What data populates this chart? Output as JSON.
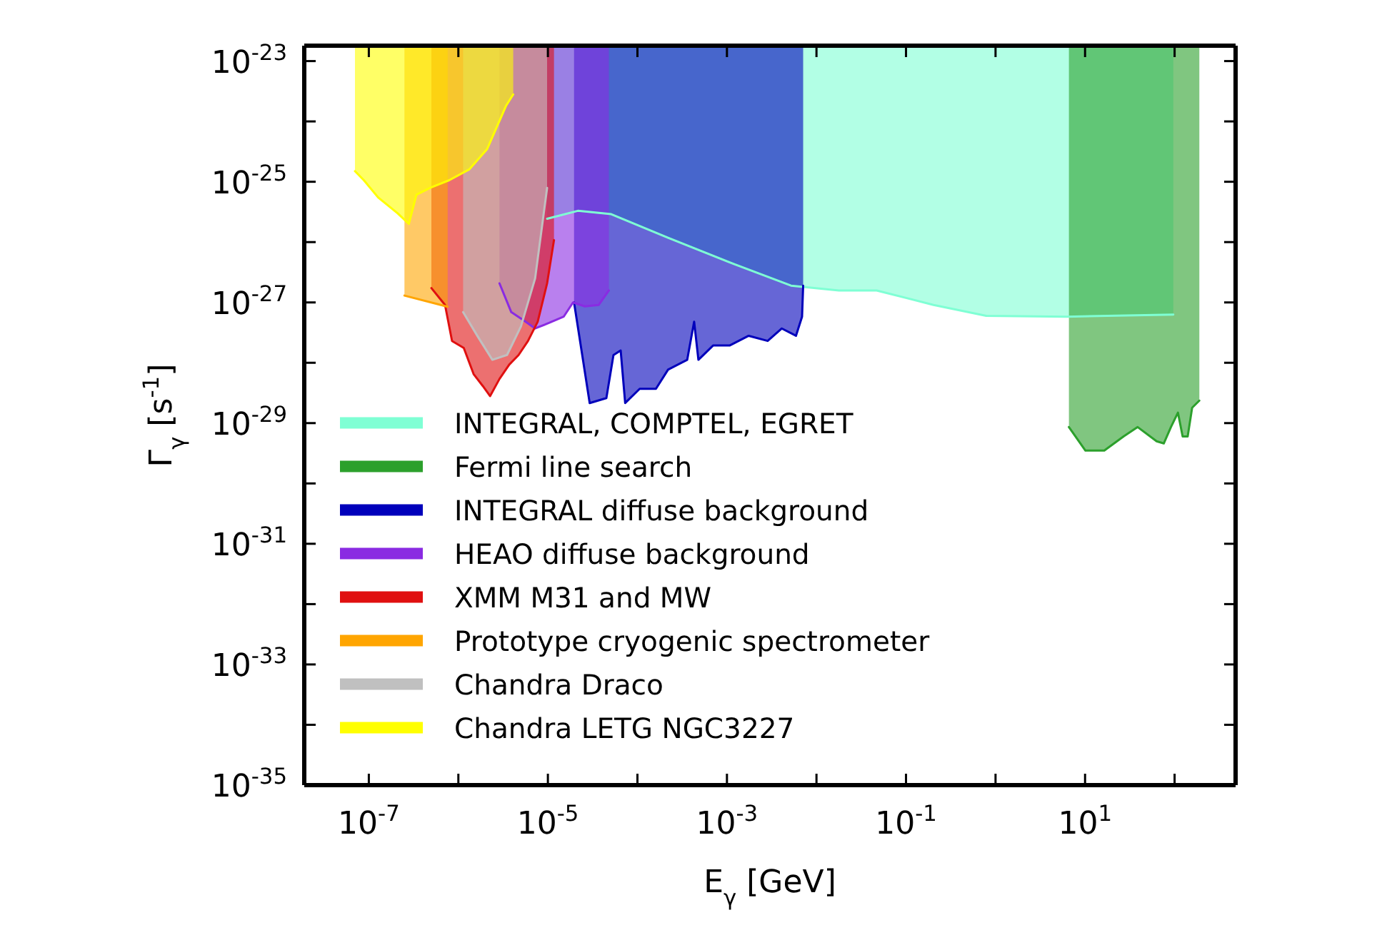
{
  "chart_data": {
    "type": "line",
    "xlabel": "E$_{γ}$ [GeV]",
    "ylabel": "Γ$_{γ}$ [s$^{-1}$]",
    "log": "xy",
    "legend": "bottom left",
    "grid": false,
    "xlim": [
      1.9e-08,
      480
    ],
    "ylim": [
      1e-35,
      1.8e-23
    ],
    "xticks": [
      {
        "value": 1e-07,
        "label": "10$^{-7}$"
      },
      {
        "value": 1e-06,
        "label": null
      },
      {
        "value": 1e-05,
        "label": "10$^{-5}$"
      },
      {
        "value": 0.0001,
        "label": null
      },
      {
        "value": 0.001,
        "label": "10$^{-3}$"
      },
      {
        "value": 0.01,
        "label": null
      },
      {
        "value": 0.1,
        "label": "10$^{-1}$"
      },
      {
        "value": 1,
        "label": null
      },
      {
        "value": 10,
        "label": "10$^{1}$"
      },
      {
        "value": 100,
        "label": null
      }
    ],
    "yticks": [
      {
        "value": 1e-35,
        "label": "10$^{-35}$"
      },
      {
        "value": 1e-34,
        "label": null
      },
      {
        "value": 1e-33,
        "label": "10$^{-33}$"
      },
      {
        "value": 1e-32,
        "label": null
      },
      {
        "value": 1e-31,
        "label": "10$^{-31}$"
      },
      {
        "value": 1e-30,
        "label": null
      },
      {
        "value": 1e-29,
        "label": "10$^{-29}$"
      },
      {
        "value": 1e-28,
        "label": null
      },
      {
        "value": 1e-27,
        "label": "10$^{-27}$"
      },
      {
        "value": 1e-26,
        "label": null
      },
      {
        "value": 1e-25,
        "label": "10$^{-25}$"
      },
      {
        "value": 1e-24,
        "label": null
      },
      {
        "value": 1e-23,
        "label": "10$^{-23}$"
      }
    ],
    "series": [
      {
        "name": "INTEGRAL, COMPTEL, EGRET",
        "color": "#7fffd4",
        "x": [
          9.8e-06,
          2.16e-05,
          5.1e-05,
          0.00022,
          0.00121,
          0.0052,
          0.0178,
          0.047,
          0.203,
          0.787,
          6.2,
          96.8
        ],
        "values": [
          2.44e-26,
          3.3e-26,
          2.9e-26,
          1.18e-26,
          4.3e-27,
          1.9e-27,
          1.58e-27,
          1.58e-27,
          9.1e-28,
          6e-28,
          5.8e-28,
          6.3e-28
        ],
        "lower": [
          2.44e-26,
          3.3e-26,
          2.9e-26,
          1.18e-26,
          4.3e-27,
          1.9e-27,
          1.58e-27,
          1.58e-27,
          9.1e-28,
          6e-28,
          5.8e-28,
          6.3e-28
        ],
        "upper": [
          1.8e-23,
          1.8e-23,
          1.8e-23,
          1.8e-23,
          1.8e-23,
          1.8e-23,
          1.8e-23,
          1.8e-23,
          1.8e-23,
          1.8e-23,
          1.8e-23,
          1.8e-23
        ]
      },
      {
        "name": "Fermi line search",
        "color": "#2ca02c",
        "x": [
          6.6,
          10.1,
          16.4,
          26.9,
          38.7,
          63,
          75.7,
          91,
          109,
          123,
          140,
          157,
          189
        ],
        "values": [
          8.6e-30,
          3.5e-30,
          3.5e-30,
          6e-30,
          8.6e-30,
          5e-30,
          4.6e-30,
          8.6e-30,
          1.49e-29,
          6e-30,
          6e-30,
          1.8e-29,
          2.36e-29
        ],
        "lower": [
          8.6e-30,
          3.5e-30,
          3.5e-30,
          6e-30,
          8.6e-30,
          5e-30,
          4.6e-30,
          8.6e-30,
          1.49e-29,
          6e-30,
          6e-30,
          1.8e-29,
          2.36e-29
        ],
        "upper": [
          1.8e-23,
          1.8e-23,
          1.8e-23,
          1.8e-23,
          1.8e-23,
          1.8e-23,
          1.8e-23,
          1.8e-23,
          1.8e-23,
          1.8e-23,
          1.8e-23,
          1.8e-23,
          1.8e-23
        ]
      },
      {
        "name": "INTEGRAL diffuse background",
        "color": "#0000bb",
        "x": [
          1.96e-05,
          2.93e-05,
          4.5e-05,
          5.4e-05,
          6.5e-05,
          7.3e-05,
          0.000106,
          0.000161,
          0.00022,
          0.00036,
          0.00043,
          0.00048,
          0.0007,
          0.00107,
          0.00175,
          0.00285,
          0.0041,
          0.0059,
          0.0069,
          0.0071
        ],
        "values": [
          1e-27,
          2.15e-29,
          2.6e-29,
          1.34e-28,
          1.6e-28,
          2.15e-29,
          3.7e-29,
          3.7e-29,
          7.7e-29,
          1.12e-28,
          4.8e-28,
          1.12e-28,
          1.93e-28,
          1.93e-28,
          2.8e-28,
          2.3e-28,
          3.7e-28,
          2.8e-28,
          5.8e-28,
          1.9e-27
        ],
        "lower": [
          1e-27,
          2.15e-29,
          2.6e-29,
          1.34e-28,
          1.6e-28,
          2.15e-29,
          3.7e-29,
          3.7e-29,
          7.7e-29,
          1.12e-28,
          4.8e-28,
          1.12e-28,
          1.93e-28,
          1.93e-28,
          2.8e-28,
          2.3e-28,
          3.7e-28,
          2.8e-28,
          5.8e-28,
          1.9e-27
        ],
        "upper": [
          1.8e-23,
          1.8e-23,
          1.8e-23,
          1.8e-23,
          1.8e-23,
          1.8e-23,
          1.8e-23,
          1.8e-23,
          1.8e-23,
          1.8e-23,
          1.8e-23,
          1.8e-23,
          1.8e-23,
          1.8e-23,
          1.8e-23,
          1.8e-23,
          1.8e-23,
          1.8e-23,
          1.8e-23,
          1.8e-23
        ]
      },
      {
        "name": "HEAO diffuse background",
        "color": "#8a2be2",
        "x": [
          2.88e-06,
          3.9e-06,
          5.65e-06,
          7.2e-06,
          1.04e-05,
          1.5e-05,
          1.91e-05,
          2.59e-05,
          3.7e-05,
          4.8e-05
        ],
        "values": [
          2.07e-27,
          6.9e-28,
          4.8e-28,
          3.7e-28,
          4.6e-28,
          5.8e-28,
          1e-27,
          8.6e-28,
          9.1e-28,
          1.58e-27
        ],
        "lower": [
          2.07e-27,
          6.9e-28,
          4.8e-28,
          3.7e-28,
          4.6e-28,
          5.8e-28,
          1e-27,
          8.6e-28,
          9.1e-28,
          1.58e-27
        ],
        "upper": [
          1.8e-23,
          1.8e-23,
          1.8e-23,
          1.8e-23,
          1.8e-23,
          1.8e-23,
          1.8e-23,
          1.8e-23,
          1.8e-23,
          1.8e-23
        ]
      },
      {
        "name": "XMM M31 and MW",
        "color": "#e01010",
        "x": [
          5e-07,
          7.1e-07,
          8.5e-07,
          1.15e-06,
          1.48e-06,
          1.88e-06,
          2.26e-06,
          2.88e-06,
          3.7e-06,
          4.7e-06,
          6e-06,
          7.7e-06,
          9.8e-06,
          1.17e-05
        ],
        "values": [
          1.73e-27,
          9.1e-28,
          2.3e-28,
          1.76e-28,
          6.5e-29,
          4.1e-29,
          2.8e-29,
          5.4e-29,
          9.3e-29,
          1.34e-28,
          2.3e-28,
          4.8e-28,
          2.07e-27,
          1.08e-26
        ],
        "lower": [
          1.73e-27,
          9.1e-28,
          2.3e-28,
          1.76e-28,
          6.5e-29,
          4.1e-29,
          2.8e-29,
          5.4e-29,
          9.3e-29,
          1.34e-28,
          2.3e-28,
          4.8e-28,
          2.07e-27,
          1.08e-26
        ],
        "upper": [
          1.8e-23,
          1.8e-23,
          1.8e-23,
          1.8e-23,
          1.8e-23,
          1.8e-23,
          1.8e-23,
          1.8e-23,
          1.8e-23,
          1.8e-23,
          1.8e-23,
          1.8e-23,
          1.8e-23,
          1.8e-23
        ]
      },
      {
        "name": "Prototype cryogenic spectrometer",
        "color": "#ffa500",
        "x": [
          2.5e-07,
          7.6e-07
        ],
        "values": [
          1.3e-27,
          8.5e-28
        ],
        "lower": [
          1.3e-27,
          8.5e-28
        ],
        "upper": [
          1.8e-23,
          1.8e-23
        ]
      },
      {
        "name": "Chandra Draco",
        "color": "#c0c0c0",
        "x": [
          1.13e-06,
          1.64e-06,
          2.4e-06,
          3.5e-06,
          5e-06,
          7.2e-06,
          9.8e-06
        ],
        "values": [
          6.9e-28,
          2.75e-28,
          1.12e-28,
          1.35e-28,
          4e-28,
          2.5e-27,
          7.9e-26
        ],
        "lower": [
          6.9e-28,
          2.75e-28,
          1.12e-28,
          1.35e-28,
          4e-28,
          2.5e-27,
          7.9e-26
        ],
        "upper": [
          1.8e-23,
          1.8e-23,
          1.8e-23,
          1.8e-23,
          1.8e-23,
          1.8e-23,
          1.8e-23
        ]
      },
      {
        "name": "Chandra LETG NGC3227",
        "color": "#ffff00",
        "x": [
          7e-08,
          8.8e-08,
          1.27e-07,
          2.1e-07,
          2.8e-07,
          3.4e-07,
          4.9e-07,
          7.9e-07,
          1.32e-06,
          2.1e-06,
          3.4e-06,
          4.1e-06
        ],
        "values": [
          1.5e-25,
          1.06e-25,
          5.5e-26,
          3e-26,
          2e-26,
          6.1e-26,
          8e-26,
          1.06e-25,
          1.6e-25,
          3.5e-25,
          1.8e-24,
          2.8e-24
        ],
        "lower": [
          1.5e-25,
          1.06e-25,
          5.5e-26,
          3e-26,
          2e-26,
          6.1e-26,
          8e-26,
          1.06e-25,
          1.6e-25,
          3.5e-25,
          1.8e-24,
          2.8e-24
        ],
        "upper": [
          1.8e-23,
          1.8e-23,
          1.8e-23,
          1.8e-23,
          1.8e-23,
          1.8e-23,
          1.8e-23,
          1.8e-23,
          1.8e-23,
          1.8e-23,
          1.8e-23,
          1.8e-23
        ]
      }
    ]
  }
}
